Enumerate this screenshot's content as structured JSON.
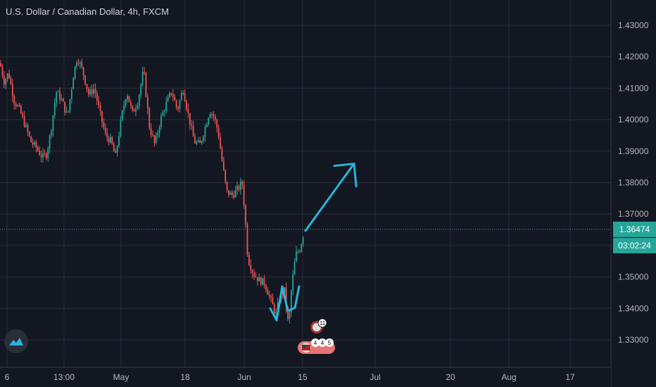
{
  "header": {
    "title": "U.S. Dollar / Canadian Dollar, 4h, FXCM"
  },
  "price_axis": {
    "last_price": "1.36474",
    "countdown": "03:02:24"
  },
  "events": {
    "cad_count": "11",
    "usd_counts": [
      "4",
      "4",
      "5"
    ]
  },
  "colors": {
    "background": "#131722",
    "grid": "#2a2e39",
    "up": "#26a69a",
    "down": "#ef5350",
    "drawing": "#2bb4d8",
    "price_line": "#26a69a"
  },
  "chart_data": {
    "type": "candlestick",
    "title": "U.S. Dollar / Canadian Dollar, 4h, FXCM",
    "interval": "4h",
    "source": "FXCM",
    "x_tick_labels": [
      "6",
      "13:00",
      "May",
      "18",
      "Jun",
      "15",
      "Jul",
      "20",
      "Aug",
      "17"
    ],
    "y_tick_labels": [
      "1.43000",
      "1.42000",
      "1.41000",
      "1.40000",
      "1.39000",
      "1.38000",
      "1.37000",
      "1.36000",
      "1.35000",
      "1.34000",
      "1.33000"
    ],
    "ylim": [
      1.325,
      1.434
    ],
    "last_price": 1.36474,
    "grid": true,
    "price_path": [
      [
        0,
        1.418
      ],
      [
        6,
        1.412
      ],
      [
        12,
        1.415
      ],
      [
        20,
        1.406
      ],
      [
        28,
        1.403
      ],
      [
        36,
        1.398
      ],
      [
        44,
        1.393
      ],
      [
        52,
        1.391
      ],
      [
        60,
        1.388
      ],
      [
        66,
        1.389
      ],
      [
        72,
        1.396
      ],
      [
        80,
        1.409
      ],
      [
        88,
        1.406
      ],
      [
        96,
        1.401
      ],
      [
        104,
        1.414
      ],
      [
        110,
        1.42
      ],
      [
        118,
        1.415
      ],
      [
        126,
        1.408
      ],
      [
        134,
        1.41
      ],
      [
        142,
        1.402
      ],
      [
        150,
        1.395
      ],
      [
        158,
        1.393
      ],
      [
        164,
        1.388
      ],
      [
        172,
        1.4
      ],
      [
        180,
        1.409
      ],
      [
        188,
        1.402
      ],
      [
        196,
        1.406
      ],
      [
        204,
        1.416
      ],
      [
        212,
        1.398
      ],
      [
        220,
        1.392
      ],
      [
        228,
        1.4
      ],
      [
        236,
        1.405
      ],
      [
        244,
        1.409
      ],
      [
        252,
        1.403
      ],
      [
        260,
        1.41
      ],
      [
        268,
        1.401
      ],
      [
        276,
        1.393
      ],
      [
        284,
        1.392
      ],
      [
        292,
        1.398
      ],
      [
        298,
        1.403
      ],
      [
        304,
        1.401
      ],
      [
        310,
        1.396
      ],
      [
        316,
        1.386
      ],
      [
        322,
        1.377
      ],
      [
        330,
        1.376
      ],
      [
        338,
        1.378
      ],
      [
        344,
        1.38
      ],
      [
        348,
        1.37
      ],
      [
        352,
        1.356
      ],
      [
        360,
        1.351
      ],
      [
        368,
        1.349
      ],
      [
        376,
        1.348
      ],
      [
        384,
        1.343
      ],
      [
        392,
        1.338
      ],
      [
        398,
        1.344
      ],
      [
        404,
        1.346
      ],
      [
        410,
        1.334
      ],
      [
        414,
        1.346
      ],
      [
        420,
        1.357
      ],
      [
        426,
        1.359
      ],
      [
        432,
        1.3647
      ]
    ],
    "annotations": [
      {
        "type": "w-pattern",
        "points": [
          [
            384,
            1.34
          ],
          [
            393,
            1.3362
          ],
          [
            401,
            1.347
          ],
          [
            409,
            1.3392
          ],
          [
            419,
            1.3402
          ],
          [
            425,
            1.347
          ]
        ]
      },
      {
        "type": "arrow",
        "from": [
          434,
          1.3647
        ],
        "to": [
          503,
          1.386
        ]
      }
    ]
  }
}
